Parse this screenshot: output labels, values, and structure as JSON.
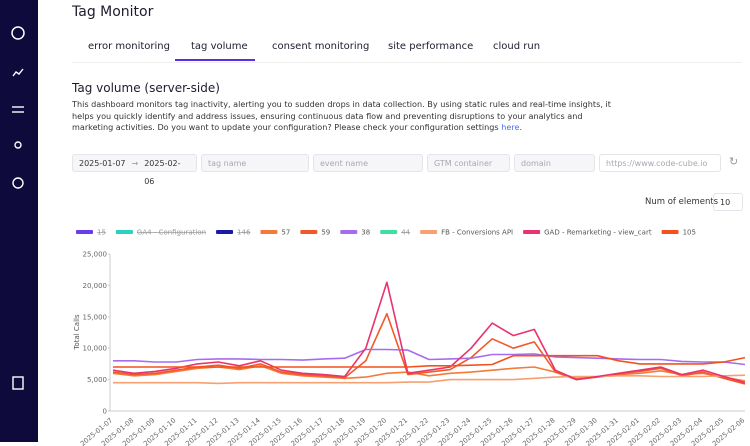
{
  "header": {
    "title": "Tag Monitor"
  },
  "tabs": {
    "items": [
      "error monitoring",
      "tag volume",
      "consent monitoring",
      "site performance",
      "cloud run"
    ],
    "active": 1
  },
  "section": {
    "title": "Tag volume (server-side)",
    "description": "This dashboard monitors tag inactivity, alerting you to sudden drops in data collection. By using static rules and real-time insights, it helps you quickly identify and address issues, ensuring continuous data flow and preventing disruptions to your analytics and marketing activities. Do you want to update your configuration? Please check your configuration settings ",
    "link": "here",
    "end": "."
  },
  "filters": {
    "date_start": "2025-01-07",
    "date_end": "2025-02-06",
    "tag_name": "tag name",
    "event_name": "event name",
    "gtm_container": "GTM container",
    "domain": "domain",
    "url": "https://www.code-cube.io"
  },
  "elements": {
    "label": "Num of elements",
    "value": "10"
  },
  "chart_data": {
    "type": "line",
    "y_label": "Total Calls",
    "x": [
      "2025-01-07",
      "2025-01-08",
      "2025-01-09",
      "2025-01-10",
      "2025-01-11",
      "2025-01-12",
      "2025-01-13",
      "2025-01-14",
      "2025-01-15",
      "2025-01-16",
      "2025-01-17",
      "2025-01-18",
      "2025-01-19",
      "2025-01-20",
      "2025-01-21",
      "2025-01-22",
      "2025-01-23",
      "2025-01-24",
      "2025-01-25",
      "2025-01-26",
      "2025-01-27",
      "2025-01-28",
      "2025-01-29",
      "2025-01-30",
      "2025-01-31",
      "2025-02-01",
      "2025-02-02",
      "2025-02-03",
      "2025-02-04",
      "2025-02-05",
      "2025-02-06"
    ],
    "ylim": [
      0,
      25000
    ],
    "yticks": [
      0,
      {
        "value": 5000,
        "label": "5,000"
      },
      {
        "value": 10000,
        "label": "10,000"
      },
      {
        "value": 15000,
        "label": "15,000"
      },
      {
        "value": 20000,
        "label": "20,000"
      },
      {
        "value": 25000,
        "label": "25,000"
      }
    ],
    "series": [
      {
        "name": "15",
        "color": "#6a3de8",
        "hidden": true
      },
      {
        "name": "GA4 - Configuration",
        "color": "#2ad1c0",
        "hidden": true
      },
      {
        "name": "146",
        "color": "#1a1aa6",
        "hidden": true
      },
      {
        "name": "57",
        "color": "#f47a3a",
        "values": [
          6000,
          5600,
          5800,
          6300,
          6800,
          7000,
          6600,
          7200,
          6000,
          5600,
          5400,
          5200,
          5400,
          6000,
          6200,
          5600,
          6000,
          6200,
          6500,
          6800,
          7000,
          6200,
          5200,
          5400,
          5800,
          6000,
          6400,
          5800,
          6000,
          5400,
          4800
        ]
      },
      {
        "name": "59",
        "color": "#f05a28",
        "values": [
          6200,
          5800,
          6000,
          6500,
          7000,
          7300,
          6800,
          7500,
          6200,
          5800,
          5600,
          5300,
          8000,
          15500,
          5800,
          6200,
          6600,
          8500,
          11500,
          10000,
          11000,
          6200,
          5000,
          5400,
          5900,
          6300,
          6800,
          5600,
          6200,
          5200,
          4300
        ]
      },
      {
        "name": "38",
        "color": "#a66cf0",
        "values": [
          8000,
          8000,
          7800,
          7800,
          8200,
          8300,
          8300,
          8200,
          8200,
          8100,
          8300,
          8400,
          9800,
          9800,
          9700,
          8200,
          8300,
          8400,
          9000,
          9000,
          9100,
          8600,
          8500,
          8400,
          8300,
          8200,
          8200,
          7900,
          7800,
          7800,
          7400
        ]
      },
      {
        "name": "44",
        "color": "#3de0a0",
        "hidden": true
      },
      {
        "name": "FB - Conversions API",
        "color": "#f7a072",
        "values": [
          4500,
          4500,
          4500,
          4500,
          4500,
          4400,
          4500,
          4500,
          4500,
          4500,
          4500,
          4500,
          4500,
          4500,
          4600,
          4600,
          5000,
          5000,
          5000,
          5000,
          5200,
          5400,
          5500,
          5500,
          5600,
          5600,
          5500,
          5500,
          5500,
          5600,
          5700
        ]
      },
      {
        "name": "GAD - Remarketing - view_cart",
        "color": "#e8336d",
        "values": [
          6500,
          6000,
          6300,
          6800,
          7500,
          7800,
          7200,
          8000,
          6500,
          6000,
          5800,
          5500,
          10000,
          20500,
          6000,
          6500,
          7000,
          10000,
          14000,
          12000,
          13000,
          6500,
          5000,
          5500,
          6000,
          6500,
          7000,
          5800,
          6500,
          5500,
          4500
        ]
      },
      {
        "name": "105",
        "color": "#f4511e",
        "values": [
          7000,
          7000,
          7000,
          7000,
          7000,
          7000,
          7000,
          7000,
          7000,
          7000,
          7000,
          7000,
          7000,
          7000,
          7000,
          7200,
          7200,
          7300,
          7400,
          8800,
          8800,
          8800,
          8800,
          8800,
          8000,
          7500,
          7500,
          7500,
          7500,
          7800,
          8500
        ]
      }
    ]
  }
}
